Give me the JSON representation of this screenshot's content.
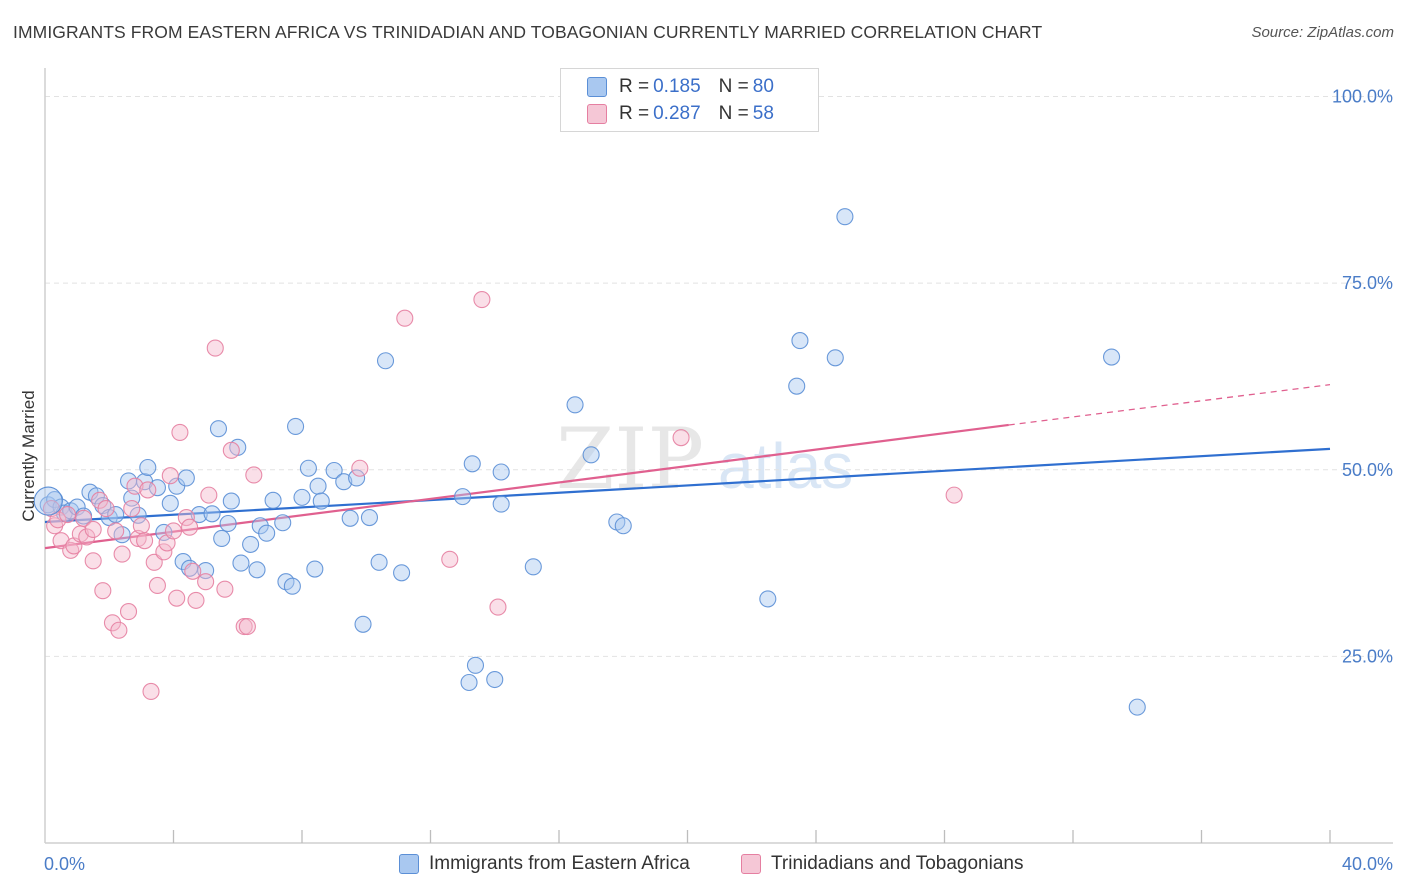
{
  "title": "IMMIGRANTS FROM EASTERN AFRICA VS TRINIDADIAN AND TOBAGONIAN CURRENTLY MARRIED CORRELATION CHART",
  "source": "Source: ZipAtlas.com",
  "watermark": "ZIPatlas",
  "legend": {
    "r_label": "R =",
    "n_label": "N =",
    "rows": [
      {
        "r": "0.185",
        "n": "80"
      },
      {
        "r": "0.287",
        "n": "58"
      }
    ]
  },
  "bottom_legend": [
    "Immigrants from Eastern Africa",
    "Trinidadians and Tobagonians"
  ],
  "colors": {
    "blue_fill": "#a9c8f0",
    "blue_stroke": "#5b8fd6",
    "blue_line": "#2f6fd0",
    "pink_fill": "#f5b8cb",
    "pink_stroke": "#e57fa1",
    "pink_line": "#e0608f",
    "tick_text": "#4a7cc7",
    "grid": "#e2e2e2"
  },
  "chart_data": {
    "type": "scatter",
    "ylabel": "Currently Married",
    "x_tick_labels": [
      "0.0%",
      "40.0%"
    ],
    "y_tick_labels": [
      "100.0%",
      "75.0%",
      "50.0%",
      "25.0%"
    ],
    "y_ticks": [
      100,
      75,
      50,
      25
    ],
    "xlim": [
      0,
      40
    ],
    "ylim": [
      0,
      105
    ],
    "grid": true,
    "series": [
      {
        "name": "Immigrants from Eastern Africa",
        "color": "#5b8fd6",
        "points": [
          [
            0.1,
            45.3
          ],
          [
            0.3,
            46.0
          ],
          [
            0.5,
            45.0
          ],
          [
            0.6,
            44.2
          ],
          [
            0.8,
            44.5
          ],
          [
            1.0,
            45.0
          ],
          [
            1.2,
            43.8
          ],
          [
            1.4,
            47.0
          ],
          [
            1.6,
            46.5
          ],
          [
            1.8,
            45.2
          ],
          [
            2.0,
            43.6
          ],
          [
            2.2,
            44.0
          ],
          [
            2.4,
            41.3
          ],
          [
            2.6,
            48.5
          ],
          [
            2.7,
            46.2
          ],
          [
            2.9,
            43.9
          ],
          [
            3.1,
            48.4
          ],
          [
            3.2,
            50.3
          ],
          [
            3.5,
            47.6
          ],
          [
            3.7,
            41.6
          ],
          [
            3.9,
            45.5
          ],
          [
            4.1,
            47.8
          ],
          [
            4.3,
            37.7
          ],
          [
            4.4,
            48.9
          ],
          [
            4.5,
            36.8
          ],
          [
            4.8,
            44.0
          ],
          [
            5.0,
            36.5
          ],
          [
            5.2,
            44.1
          ],
          [
            5.4,
            55.5
          ],
          [
            5.5,
            40.8
          ],
          [
            5.7,
            42.8
          ],
          [
            5.8,
            45.8
          ],
          [
            6.0,
            53.0
          ],
          [
            6.1,
            37.5
          ],
          [
            6.4,
            40.0
          ],
          [
            6.6,
            36.6
          ],
          [
            6.7,
            42.5
          ],
          [
            6.9,
            41.5
          ],
          [
            7.1,
            45.9
          ],
          [
            7.4,
            42.9
          ],
          [
            7.5,
            35.0
          ],
          [
            7.7,
            34.4
          ],
          [
            7.8,
            55.8
          ],
          [
            8.0,
            46.3
          ],
          [
            8.2,
            50.2
          ],
          [
            8.4,
            36.7
          ],
          [
            8.5,
            47.8
          ],
          [
            8.6,
            45.8
          ],
          [
            9.0,
            49.9
          ],
          [
            9.3,
            48.4
          ],
          [
            9.5,
            43.5
          ],
          [
            9.7,
            48.9
          ],
          [
            9.9,
            29.3
          ],
          [
            10.1,
            43.6
          ],
          [
            10.4,
            37.6
          ],
          [
            10.6,
            64.6
          ],
          [
            11.1,
            36.2
          ],
          [
            13.0,
            46.4
          ],
          [
            13.2,
            21.5
          ],
          [
            13.3,
            50.8
          ],
          [
            13.4,
            23.8
          ],
          [
            14.0,
            21.9
          ],
          [
            14.2,
            45.4
          ],
          [
            14.2,
            49.7
          ],
          [
            15.2,
            37.0
          ],
          [
            16.5,
            58.7
          ],
          [
            17.0,
            52.0
          ],
          [
            17.8,
            43.0
          ],
          [
            18.0,
            42.5
          ],
          [
            22.5,
            32.7
          ],
          [
            23.4,
            61.2
          ],
          [
            23.5,
            67.3
          ],
          [
            24.6,
            65.0
          ],
          [
            24.9,
            83.9
          ],
          [
            33.2,
            65.1
          ],
          [
            34.0,
            18.2
          ]
        ]
      },
      {
        "name": "Trinidadians and Tobagonians",
        "color": "#e57fa1",
        "points": [
          [
            0.2,
            44.8
          ],
          [
            0.3,
            42.5
          ],
          [
            0.4,
            43.3
          ],
          [
            0.5,
            40.5
          ],
          [
            0.7,
            44.0
          ],
          [
            0.8,
            39.2
          ],
          [
            0.9,
            39.8
          ],
          [
            1.1,
            41.4
          ],
          [
            1.2,
            43.5
          ],
          [
            1.3,
            41.0
          ],
          [
            1.5,
            37.8
          ],
          [
            1.5,
            42.0
          ],
          [
            1.7,
            45.9
          ],
          [
            1.8,
            33.8
          ],
          [
            1.9,
            44.8
          ],
          [
            2.1,
            29.5
          ],
          [
            2.2,
            41.8
          ],
          [
            2.3,
            28.5
          ],
          [
            2.4,
            38.7
          ],
          [
            2.6,
            31.0
          ],
          [
            2.7,
            44.8
          ],
          [
            2.8,
            47.8
          ],
          [
            2.9,
            40.8
          ],
          [
            3.0,
            42.5
          ],
          [
            3.1,
            40.5
          ],
          [
            3.2,
            47.3
          ],
          [
            3.3,
            20.3
          ],
          [
            3.4,
            37.6
          ],
          [
            3.5,
            34.5
          ],
          [
            3.7,
            39.0
          ],
          [
            3.8,
            40.2
          ],
          [
            3.9,
            49.2
          ],
          [
            4.0,
            41.8
          ],
          [
            4.1,
            32.8
          ],
          [
            4.2,
            55.0
          ],
          [
            4.4,
            43.6
          ],
          [
            4.5,
            42.3
          ],
          [
            4.6,
            36.4
          ],
          [
            4.7,
            32.5
          ],
          [
            5.0,
            35.0
          ],
          [
            5.1,
            46.6
          ],
          [
            5.3,
            66.3
          ],
          [
            5.6,
            34.0
          ],
          [
            5.8,
            52.6
          ],
          [
            6.2,
            29.0
          ],
          [
            6.3,
            29.0
          ],
          [
            6.5,
            49.3
          ],
          [
            9.8,
            50.2
          ],
          [
            11.2,
            70.3
          ],
          [
            12.6,
            38.0
          ],
          [
            13.6,
            72.8
          ],
          [
            14.1,
            31.6
          ],
          [
            19.8,
            54.3
          ],
          [
            28.3,
            46.6
          ]
        ]
      }
    ],
    "trend_lines": [
      {
        "series": "Immigrants from Eastern Africa",
        "x": [
          0,
          40
        ],
        "y": [
          43.0,
          52.8
        ]
      },
      {
        "series": "Trinidadians and Tobagonians",
        "x": [
          0,
          30
        ],
        "y": [
          39.5,
          56.0
        ],
        "dashed_extension_to": [
          40,
          61.4
        ]
      }
    ]
  }
}
